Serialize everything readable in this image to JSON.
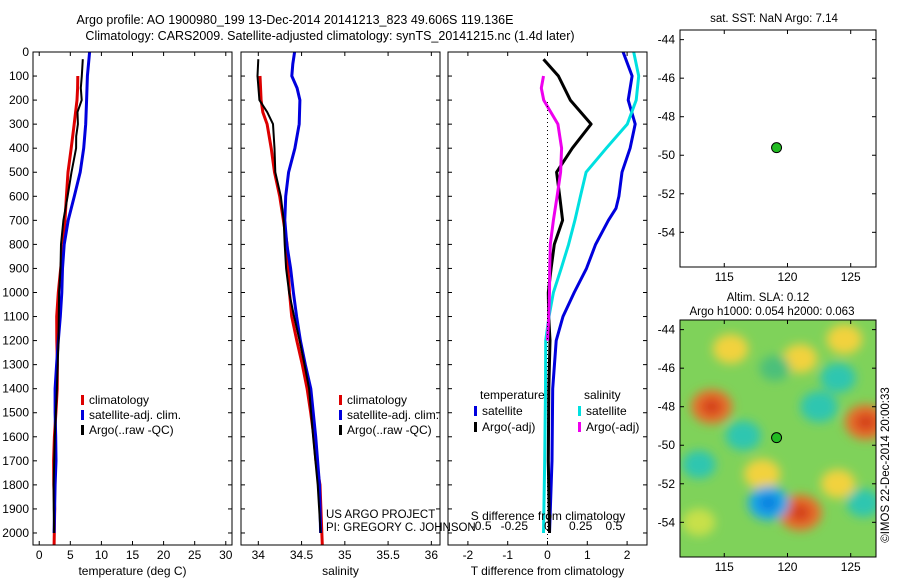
{
  "header": {
    "line1": "Argo profile: AO 1900980_199 13-Dec-2014 20141213_823 49.606S 119.136E",
    "line2": "Climatology: CARS2009. Satellite-adjusted climatology: synTS_20141215.nc (1.4d later)"
  },
  "credits": {
    "project": "US ARGO PROJECT",
    "pi": "PI: GREGORY C. JOHNSON",
    "imos": "©IMOS 22-Dec-2014 20:00:33"
  },
  "colors": {
    "climatology": "#dd0000",
    "satellite": "#0000dd",
    "argo": "#000000",
    "sat_salinity": "#00e0e0",
    "argo_salinity": "#ee00ee",
    "marker": "#22bb22"
  },
  "chart_data": [
    {
      "type": "line",
      "panel": "temperature",
      "xlabel": "temperature (deg C)",
      "ylabel": "",
      "xlim": [
        -1,
        31
      ],
      "ylim": [
        2050,
        0
      ],
      "xticks": [
        0,
        5,
        10,
        15,
        20,
        25,
        30
      ],
      "yticks": [
        0,
        100,
        200,
        300,
        400,
        500,
        600,
        700,
        800,
        900,
        1000,
        1100,
        1200,
        1300,
        1400,
        1500,
        1600,
        1700,
        1800,
        1900,
        2000
      ],
      "legend": [
        "climatology",
        "satellite-adj. clim.",
        "Argo(..raw -QC)"
      ],
      "series": [
        {
          "name": "climatology",
          "color": "#dd0000",
          "width": 3,
          "x": [
            6.2,
            6.0,
            5.9,
            5.6,
            5.3,
            4.8,
            4.4,
            4.0,
            3.7,
            3.4,
            3.2,
            3.0,
            2.9,
            2.8,
            2.7,
            2.6,
            2.55,
            2.5,
            2.45,
            2.4,
            2.4
          ],
          "y": [
            100,
            150,
            200,
            300,
            400,
            500,
            600,
            700,
            800,
            900,
            1000,
            1100,
            1200,
            1300,
            1400,
            1500,
            1600,
            1700,
            1800,
            1900,
            2050
          ]
        },
        {
          "name": "satellite-adj. clim.",
          "color": "#0000dd",
          "width": 3,
          "x": [
            8.1,
            7.9,
            7.8,
            7.5,
            7.0,
            6.4,
            5.6,
            4.8,
            4.2,
            3.8,
            3.5,
            3.2,
            3.0,
            2.9,
            2.75,
            2.65,
            2.55,
            2.5,
            2.45,
            2.4
          ],
          "y": [
            0,
            100,
            200,
            300,
            400,
            500,
            600,
            700,
            800,
            900,
            1000,
            1100,
            1200,
            1300,
            1400,
            1500,
            1600,
            1700,
            1800,
            2000
          ]
        },
        {
          "name": "Argo(..raw -QC)",
          "color": "#000000",
          "width": 2,
          "x": [
            7.0,
            6.7,
            6.5,
            6.8,
            6.3,
            6.4,
            6.0,
            5.8,
            5.0,
            4.5,
            4.0,
            3.7,
            3.5,
            3.1,
            2.9,
            2.75,
            2.6,
            2.5,
            2.45,
            2.4
          ],
          "y": [
            30,
            100,
            150,
            200,
            250,
            300,
            350,
            400,
            500,
            600,
            700,
            800,
            900,
            1000,
            1200,
            1400,
            1600,
            1800,
            1900,
            2000
          ]
        }
      ]
    },
    {
      "type": "line",
      "panel": "salinity",
      "xlabel": "salinity",
      "xlim": [
        33.8,
        36.1
      ],
      "ylim": [
        2050,
        0
      ],
      "xticks": [
        34,
        34.5,
        35,
        35.5,
        36
      ],
      "legend": [
        "climatology",
        "satellite-adj. clim.",
        "Argo(..raw -QC)"
      ],
      "series": [
        {
          "name": "climatology",
          "color": "#dd0000",
          "width": 3,
          "x": [
            34.02,
            34.02,
            34.04,
            34.1,
            34.16,
            34.2,
            34.25,
            34.28,
            34.32,
            34.34,
            34.37,
            34.4,
            34.45,
            34.5,
            34.55,
            34.6,
            34.65,
            34.68,
            34.72,
            34.74
          ],
          "y": [
            100,
            200,
            250,
            300,
            400,
            500,
            600,
            700,
            800,
            900,
            1000,
            1100,
            1200,
            1300,
            1400,
            1500,
            1600,
            1700,
            1800,
            2050
          ]
        },
        {
          "name": "satellite-adj. clim.",
          "color": "#0000dd",
          "width": 3,
          "x": [
            34.42,
            34.41,
            34.4,
            34.45,
            34.47,
            34.46,
            34.42,
            34.36,
            34.33,
            34.31,
            34.32,
            34.36,
            34.4,
            34.45,
            34.5,
            34.55,
            34.6,
            34.65,
            34.7,
            34.72
          ],
          "y": [
            0,
            50,
            100,
            150,
            200,
            300,
            400,
            500,
            600,
            700,
            800,
            900,
            1000,
            1100,
            1200,
            1300,
            1400,
            1600,
            1800,
            2000
          ]
        },
        {
          "name": "Argo(..raw -QC)",
          "color": "#000000",
          "width": 2,
          "x": [
            34.0,
            33.98,
            34.0,
            34.1,
            34.18,
            34.2,
            34.2,
            34.25,
            34.28,
            34.3,
            34.33,
            34.37,
            34.42,
            34.47,
            34.52,
            34.58,
            34.64,
            34.7,
            34.72
          ],
          "y": [
            30,
            100,
            200,
            250,
            300,
            400,
            500,
            600,
            700,
            800,
            900,
            1000,
            1100,
            1200,
            1300,
            1400,
            1600,
            1800,
            2000
          ]
        }
      ]
    },
    {
      "type": "line",
      "panel": "difference",
      "xlabel": "T difference from climatology",
      "xlabel2": "S difference from climatology",
      "xlim": [
        -2.5,
        2.5
      ],
      "x2lim": [
        -0.75,
        0.75
      ],
      "ylim": [
        2050,
        0
      ],
      "xticks": [
        -2,
        -1,
        0,
        1,
        2
      ],
      "x2ticks": [
        -0.5,
        -0.25,
        0,
        0.25,
        0.5
      ],
      "legend_temperature_title": "temperature",
      "legend_salinity_title": "salinity",
      "legend": [
        "satellite",
        "Argo(-adj)",
        "satellite",
        "Argo(-adj)"
      ],
      "series": [
        {
          "name": "satellite",
          "group": "temperature",
          "color": "#0000dd",
          "width": 3,
          "x": [
            1.9,
            2.1,
            2.0,
            2.2,
            2.1,
            1.9,
            1.8,
            1.7,
            1.5,
            1.2,
            1.0,
            0.7,
            0.4,
            0.2,
            0.1,
            0.1,
            0.05
          ],
          "y": [
            0,
            100,
            200,
            300,
            400,
            500,
            600,
            650,
            700,
            800,
            900,
            1000,
            1100,
            1200,
            1400,
            1700,
            2000
          ]
        },
        {
          "name": "Argo(-adj)",
          "group": "temperature",
          "color": "#000000",
          "width": 3,
          "x": [
            -0.1,
            0.3,
            0.6,
            1.1,
            0.6,
            0.2,
            0.3,
            0.4,
            0.2,
            0.1,
            0.0,
            0.0,
            0.05,
            0.05,
            0.05,
            0.05
          ],
          "y": [
            30,
            100,
            200,
            300,
            400,
            500,
            600,
            700,
            800,
            900,
            1000,
            1100,
            1200,
            1400,
            1700,
            2000
          ]
        },
        {
          "name": "satellite",
          "group": "salinity",
          "color": "#00e0e0",
          "width": 3,
          "x": [
            0.65,
            0.68,
            0.66,
            0.6,
            0.45,
            0.3,
            0.25,
            0.2,
            0.15,
            0.1,
            0.05,
            0.02,
            -0.01,
            -0.02,
            -0.03,
            -0.03
          ],
          "y": [
            0,
            100,
            200,
            300,
            400,
            500,
            600,
            700,
            800,
            900,
            1000,
            1100,
            1200,
            1400,
            1700,
            2000
          ]
        },
        {
          "name": "Argo(-adj)",
          "group": "salinity",
          "color": "#ee00ee",
          "width": 3,
          "x": [
            -0.03,
            -0.04,
            -0.02,
            0.08,
            0.1,
            0.09,
            0.07,
            0.05,
            0.03,
            0.02,
            0.01,
            0.0,
            0.0
          ],
          "y": [
            100,
            150,
            200,
            300,
            400,
            500,
            600,
            700,
            800,
            900,
            1000,
            1100,
            1200
          ]
        }
      ]
    },
    {
      "type": "scatter",
      "panel": "sst-map",
      "title": "sat. SST: NaN Argo: 7.14",
      "xlim": [
        111.5,
        127
      ],
      "ylim": [
        -55.8,
        -43.5
      ],
      "xticks": [
        115,
        120,
        125
      ],
      "yticks": [
        -44,
        -46,
        -48,
        -50,
        -52,
        -54
      ],
      "points": [
        {
          "lon": 119.136,
          "lat": -49.606
        }
      ]
    },
    {
      "type": "heatmap",
      "panel": "sla-map",
      "title": "Altim. SLA: 0.12",
      "subtitle": "Argo h1000: 0.054 h2000: 0.063",
      "xlim": [
        111.5,
        127
      ],
      "ylim": [
        -55.8,
        -43.5
      ],
      "xticks": [
        115,
        120,
        125
      ],
      "yticks": [
        -44,
        -46,
        -48,
        -50,
        -52,
        -54
      ],
      "points": [
        {
          "lon": 119.136,
          "lat": -49.606
        }
      ],
      "blobs": [
        {
          "lon": 114.0,
          "lat": -48.0,
          "level": 0.9
        },
        {
          "lon": 115.5,
          "lat": -45.0,
          "level": 0.6
        },
        {
          "lon": 121.0,
          "lat": -45.5,
          "level": 0.55
        },
        {
          "lon": 124.5,
          "lat": -44.5,
          "level": 0.6
        },
        {
          "lon": 126.2,
          "lat": -48.8,
          "level": 0.95
        },
        {
          "lon": 121.0,
          "lat": -53.5,
          "level": 1.0
        },
        {
          "lon": 118.0,
          "lat": -51.5,
          "level": 0.65
        },
        {
          "lon": 124.0,
          "lat": -52.0,
          "level": 0.55
        },
        {
          "lon": 113.0,
          "lat": -54.0,
          "level": 0.45
        },
        {
          "lon": 116.5,
          "lat": -49.5,
          "level": -0.6
        },
        {
          "lon": 118.5,
          "lat": -53.0,
          "level": -0.9
        },
        {
          "lon": 122.5,
          "lat": -48.0,
          "level": -0.7
        },
        {
          "lon": 124.0,
          "lat": -46.5,
          "level": -0.6
        },
        {
          "lon": 113.0,
          "lat": -51.0,
          "level": -0.5
        },
        {
          "lon": 126.0,
          "lat": -53.0,
          "level": -0.5
        },
        {
          "lon": 119.0,
          "lat": -46.0,
          "level": -0.35
        }
      ]
    }
  ]
}
